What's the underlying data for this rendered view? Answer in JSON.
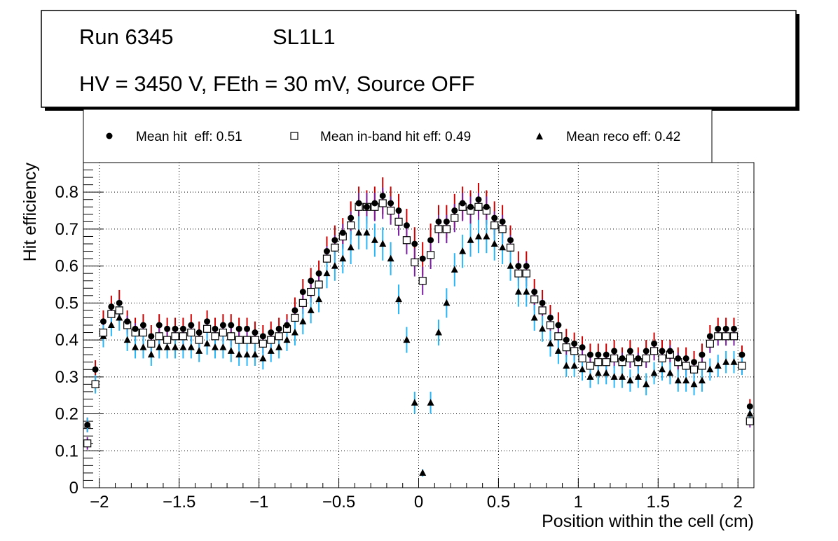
{
  "header": {
    "run_label": "Run 6345",
    "layer_label": "SL1L1",
    "conditions": "HV = 3450 V, FEth = 30 mV, Source OFF"
  },
  "chart_data": {
    "type": "scatter",
    "title": "",
    "xlabel": "Position within the cell (cm)",
    "ylabel": "Hit efficiency",
    "xlim": [
      -2.1,
      2.1
    ],
    "ylim": [
      0,
      0.88
    ],
    "xticks": [
      -2,
      -1.5,
      -1,
      -0.5,
      0,
      0.5,
      1,
      1.5,
      2
    ],
    "xtick_labels": [
      "−2",
      "−1.5",
      "−1",
      "−0.5",
      "0",
      "0.5",
      "1",
      "1.5",
      "2"
    ],
    "yticks": [
      0,
      0.1,
      0.2,
      0.3,
      0.4,
      0.5,
      0.6,
      0.7,
      0.8
    ],
    "ytick_labels": [
      "0",
      "0.1",
      "0.2",
      "0.3",
      "0.4",
      "0.5",
      "0.6",
      "0.7",
      "0.8"
    ],
    "grid": true,
    "legend_position": "top",
    "x": [
      -2.075,
      -2.025,
      -1.975,
      -1.925,
      -1.875,
      -1.825,
      -1.775,
      -1.725,
      -1.675,
      -1.625,
      -1.575,
      -1.525,
      -1.475,
      -1.425,
      -1.375,
      -1.325,
      -1.275,
      -1.225,
      -1.175,
      -1.125,
      -1.075,
      -1.025,
      -0.975,
      -0.925,
      -0.875,
      -0.825,
      -0.775,
      -0.725,
      -0.675,
      -0.625,
      -0.575,
      -0.525,
      -0.475,
      -0.425,
      -0.375,
      -0.325,
      -0.275,
      -0.225,
      -0.175,
      -0.125,
      -0.075,
      -0.025,
      0.025,
      0.075,
      0.125,
      0.175,
      0.225,
      0.275,
      0.325,
      0.375,
      0.425,
      0.475,
      0.525,
      0.575,
      0.625,
      0.675,
      0.725,
      0.775,
      0.825,
      0.875,
      0.925,
      0.975,
      1.025,
      1.075,
      1.125,
      1.175,
      1.225,
      1.275,
      1.325,
      1.375,
      1.425,
      1.475,
      1.525,
      1.575,
      1.625,
      1.675,
      1.725,
      1.775,
      1.825,
      1.875,
      1.925,
      1.975,
      2.025,
      2.075
    ],
    "series": [
      {
        "name": "Mean hit  eff: 0.51",
        "marker": "circle",
        "color": "#000000",
        "error_color": "#cc0000",
        "values": [
          0.17,
          0.32,
          0.45,
          0.49,
          0.5,
          0.45,
          0.43,
          0.44,
          0.41,
          0.44,
          0.43,
          0.43,
          0.43,
          0.44,
          0.42,
          0.45,
          0.43,
          0.44,
          0.44,
          0.43,
          0.43,
          0.42,
          0.41,
          0.42,
          0.43,
          0.44,
          0.48,
          0.53,
          0.56,
          0.58,
          0.64,
          0.67,
          0.69,
          0.73,
          0.77,
          0.76,
          0.77,
          0.79,
          0.77,
          0.75,
          0.71,
          0.66,
          0.62,
          0.67,
          0.72,
          0.72,
          0.75,
          0.77,
          0.76,
          0.78,
          0.76,
          0.73,
          0.72,
          0.67,
          0.6,
          0.6,
          0.53,
          0.5,
          0.46,
          0.44,
          0.4,
          0.39,
          0.38,
          0.36,
          0.36,
          0.36,
          0.37,
          0.35,
          0.37,
          0.35,
          0.37,
          0.39,
          0.37,
          0.37,
          0.35,
          0.35,
          0.34,
          0.36,
          0.41,
          0.43,
          0.43,
          0.43,
          0.36,
          0.22
        ],
        "errors": [
          0.02,
          0.025,
          0.03,
          0.03,
          0.035,
          0.03,
          0.03,
          0.03,
          0.03,
          0.03,
          0.03,
          0.03,
          0.03,
          0.03,
          0.03,
          0.03,
          0.03,
          0.03,
          0.03,
          0.03,
          0.03,
          0.03,
          0.03,
          0.03,
          0.03,
          0.03,
          0.035,
          0.035,
          0.035,
          0.035,
          0.04,
          0.04,
          0.04,
          0.045,
          0.045,
          0.045,
          0.045,
          0.05,
          0.045,
          0.045,
          0.045,
          0.045,
          0.045,
          0.045,
          0.045,
          0.045,
          0.045,
          0.045,
          0.045,
          0.045,
          0.045,
          0.045,
          0.045,
          0.04,
          0.04,
          0.04,
          0.035,
          0.035,
          0.035,
          0.035,
          0.03,
          0.03,
          0.03,
          0.03,
          0.03,
          0.03,
          0.03,
          0.03,
          0.03,
          0.03,
          0.03,
          0.03,
          0.03,
          0.03,
          0.03,
          0.03,
          0.03,
          0.03,
          0.03,
          0.03,
          0.03,
          0.03,
          0.025,
          0.02
        ]
      },
      {
        "name": "Mean in-band hit eff: 0.49",
        "marker": "open-square",
        "color": "#000000",
        "error_color": "#7b1fa2",
        "values": [
          0.12,
          0.28,
          0.42,
          0.47,
          0.48,
          0.44,
          0.42,
          0.42,
          0.39,
          0.41,
          0.4,
          0.41,
          0.41,
          0.42,
          0.4,
          0.43,
          0.41,
          0.42,
          0.41,
          0.4,
          0.4,
          0.4,
          0.39,
          0.4,
          0.41,
          0.43,
          0.46,
          0.5,
          0.53,
          0.55,
          0.62,
          0.65,
          0.68,
          0.71,
          0.76,
          0.76,
          0.76,
          0.77,
          0.75,
          0.72,
          0.67,
          0.61,
          0.56,
          0.63,
          0.7,
          0.7,
          0.73,
          0.76,
          0.75,
          0.76,
          0.75,
          0.71,
          0.7,
          0.65,
          0.58,
          0.58,
          0.51,
          0.48,
          0.44,
          0.41,
          0.38,
          0.37,
          0.35,
          0.33,
          0.34,
          0.34,
          0.35,
          0.34,
          0.35,
          0.34,
          0.35,
          0.37,
          0.35,
          0.36,
          0.34,
          0.33,
          0.32,
          0.33,
          0.39,
          0.41,
          0.41,
          0.41,
          0.33,
          0.18
        ]
      },
      {
        "name": "Mean reco eff: 0.42",
        "marker": "triangle",
        "color": "#000000",
        "error_color": "#29b6f6",
        "values": [
          0.17,
          0.28,
          0.41,
          0.44,
          0.46,
          0.4,
          0.38,
          0.38,
          0.36,
          0.38,
          0.38,
          0.38,
          0.38,
          0.38,
          0.37,
          0.39,
          0.38,
          0.38,
          0.37,
          0.36,
          0.36,
          0.36,
          0.35,
          0.37,
          0.38,
          0.4,
          0.42,
          0.45,
          0.48,
          0.51,
          0.58,
          0.6,
          0.62,
          0.65,
          0.69,
          0.69,
          0.67,
          0.66,
          0.62,
          0.51,
          0.4,
          0.23,
          0.04,
          0.23,
          0.42,
          0.5,
          0.59,
          0.64,
          0.67,
          0.68,
          0.68,
          0.66,
          0.65,
          0.6,
          0.53,
          0.53,
          0.46,
          0.43,
          0.39,
          0.37,
          0.33,
          0.33,
          0.32,
          0.3,
          0.31,
          0.31,
          0.3,
          0.3,
          0.29,
          0.3,
          0.28,
          0.31,
          0.32,
          0.31,
          0.29,
          0.29,
          0.28,
          0.29,
          0.32,
          0.33,
          0.34,
          0.34,
          0.33,
          0.2
        ],
        "errors": [
          0.02,
          0.025,
          0.03,
          0.03,
          0.035,
          0.03,
          0.03,
          0.03,
          0.03,
          0.03,
          0.03,
          0.03,
          0.03,
          0.03,
          0.03,
          0.03,
          0.03,
          0.03,
          0.03,
          0.03,
          0.03,
          0.03,
          0.03,
          0.03,
          0.03,
          0.03,
          0.035,
          0.035,
          0.035,
          0.035,
          0.04,
          0.04,
          0.04,
          0.045,
          0.045,
          0.045,
          0.045,
          0.045,
          0.045,
          0.04,
          0.035,
          0.03,
          0.01,
          0.03,
          0.035,
          0.04,
          0.045,
          0.045,
          0.045,
          0.045,
          0.045,
          0.045,
          0.045,
          0.04,
          0.04,
          0.04,
          0.035,
          0.035,
          0.035,
          0.035,
          0.03,
          0.03,
          0.03,
          0.03,
          0.03,
          0.03,
          0.03,
          0.03,
          0.03,
          0.03,
          0.03,
          0.03,
          0.03,
          0.03,
          0.03,
          0.03,
          0.03,
          0.03,
          0.03,
          0.03,
          0.03,
          0.03,
          0.025,
          0.02
        ]
      }
    ]
  }
}
